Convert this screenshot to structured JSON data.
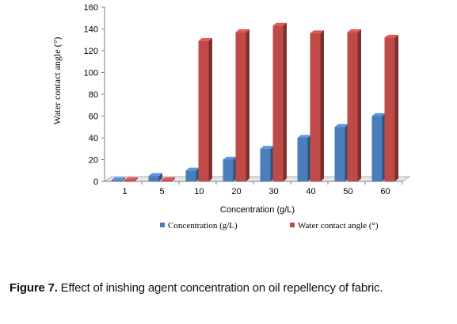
{
  "chart_data": {
    "type": "bar",
    "categories": [
      "1",
      "5",
      "10",
      "20",
      "30",
      "40",
      "50",
      "60"
    ],
    "series": [
      {
        "name": "Concentration  (g/L)",
        "values": [
          1,
          5,
          10,
          20,
          30,
          40,
          50,
          60
        ],
        "color": "#4A7EBB"
      },
      {
        "name": "Water contact angle  (°)",
        "values": [
          0,
          0,
          129,
          137,
          143,
          136,
          137,
          132
        ],
        "color": "#BE4B48"
      }
    ],
    "ylim": [
      0,
      160
    ],
    "yticks": [
      "0",
      "20",
      "40",
      "60",
      "80",
      "100",
      "120",
      "140",
      "160"
    ],
    "xlabel": "Concentration  (g/L)",
    "ylabel": "Water contact angle (°)",
    "legend_position": "bottom",
    "three_d": true,
    "grid": false
  },
  "caption": {
    "label": "Figure 7.",
    "text": " Effect of  inishing agent concentration on oil repellency of fabric."
  }
}
